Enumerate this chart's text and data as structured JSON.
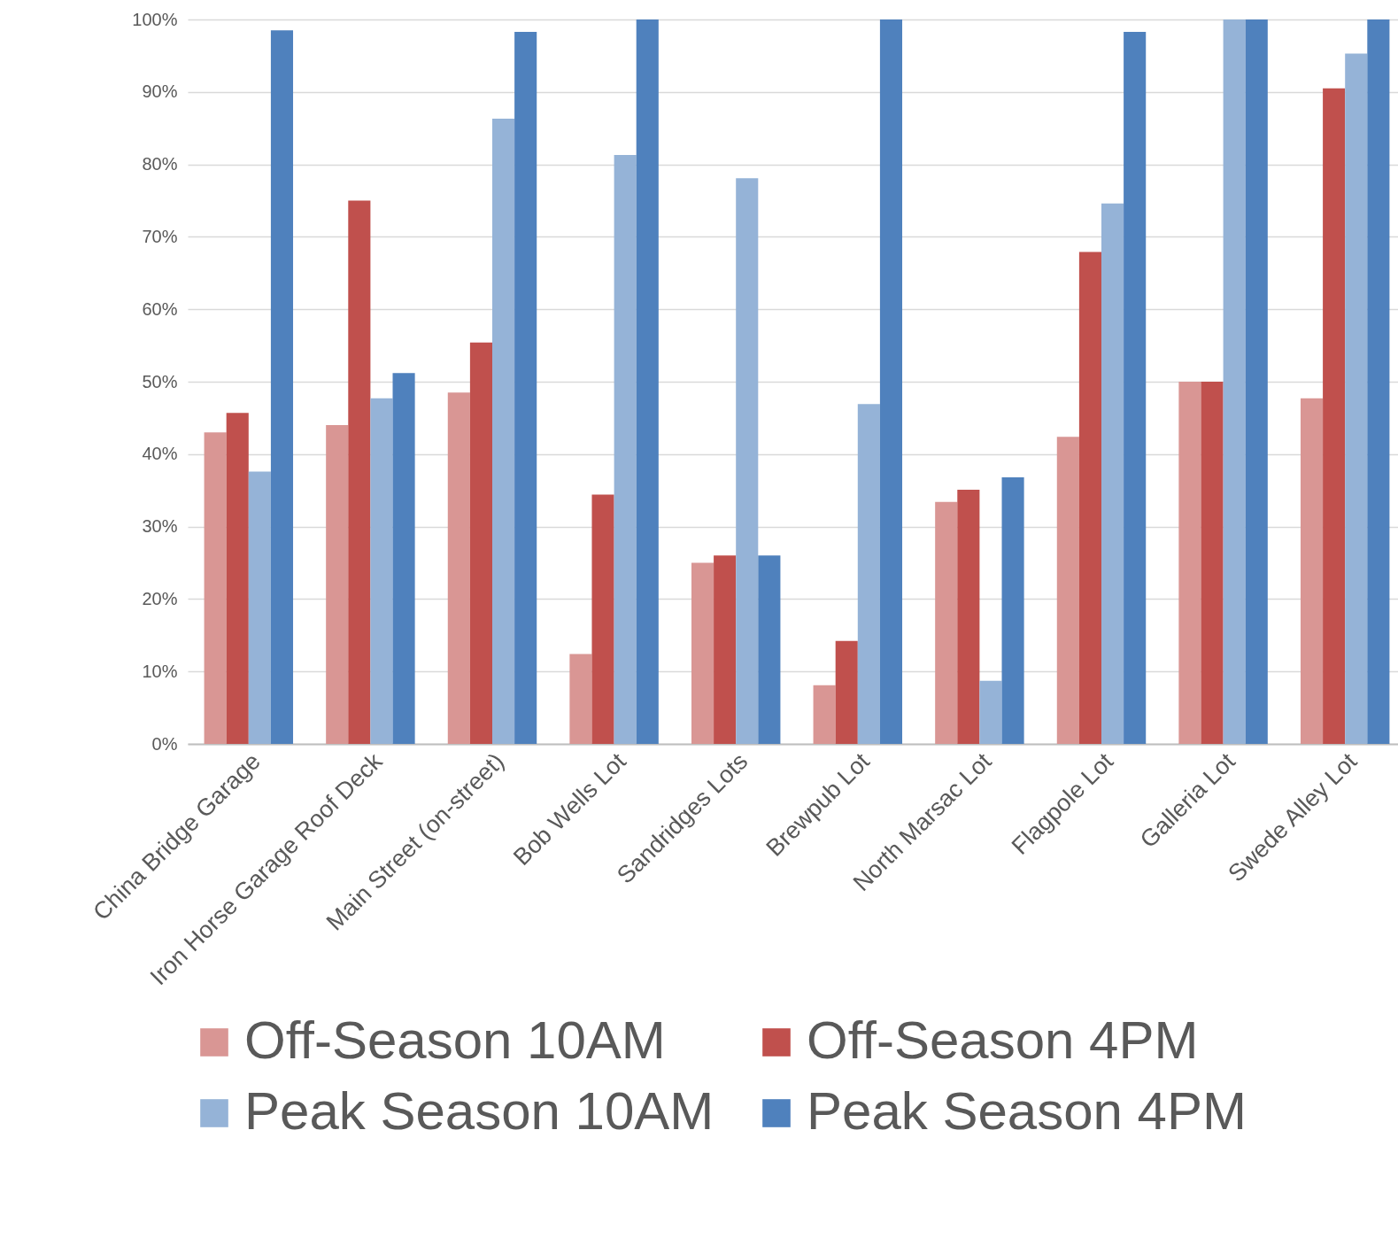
{
  "chart_data": {
    "type": "bar",
    "categories": [
      "China Bridge Garage",
      "Iron Horse Garage Roof Deck",
      "Main Street (on-street)",
      "Bob Wells Lot",
      "Sandridges Lots",
      "Brewpub Lot",
      "North Marsac Lot",
      "Flagpole Lot",
      "Galleria Lot",
      "Swede Alley Lot"
    ],
    "series": [
      {
        "name": "Off-Season 10AM",
        "color": "#d99694",
        "values": [
          43.0,
          44.0,
          48.5,
          12.4,
          25.0,
          8.1,
          33.4,
          42.4,
          50,
          47.7
        ]
      },
      {
        "name": "Off-Season 4PM",
        "color": "#c0504d",
        "values": [
          45.7,
          75.0,
          55.4,
          34.4,
          26.0,
          14.2,
          35.1,
          67.9,
          50,
          90.5
        ]
      },
      {
        "name": "Peak Season 10AM",
        "color": "#95b3d7",
        "values": [
          37.6,
          47.7,
          86.3,
          81.3,
          78.1,
          46.9,
          8.7,
          74.6,
          100,
          95.3
        ]
      },
      {
        "name": "Peak Season 4PM",
        "color": "#4f81bd",
        "values": [
          98.5,
          51.2,
          98.3,
          100,
          26.0,
          100,
          36.8,
          98.3,
          100,
          100
        ]
      }
    ],
    "ylim": [
      0,
      100
    ],
    "yticks": [
      {
        "value": 0,
        "label": "0%"
      },
      {
        "value": 10,
        "label": "10%"
      },
      {
        "value": 20,
        "label": "20%"
      },
      {
        "value": 30,
        "label": "30%"
      },
      {
        "value": 40,
        "label": "40%"
      },
      {
        "value": 50,
        "label": "50%"
      },
      {
        "value": 60,
        "label": "60%"
      },
      {
        "value": 70,
        "label": "70%"
      },
      {
        "value": 80,
        "label": "80%"
      },
      {
        "value": 90,
        "label": "90%"
      },
      {
        "value": 100,
        "label": "100%"
      }
    ],
    "grid": "y",
    "legend": "bottom"
  }
}
